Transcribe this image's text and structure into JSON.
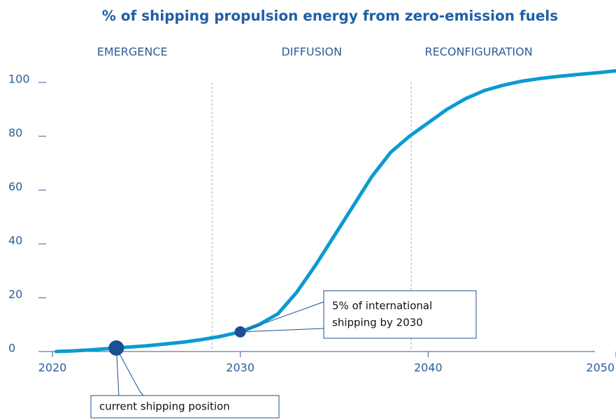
{
  "chart_data": {
    "type": "line",
    "title": "% of shipping propulsion energy from zero-emission fuels",
    "phases": [
      {
        "label": "EMERGENCE",
        "end": 2028.5
      },
      {
        "label": "DIFFUSION",
        "end": 2039.1
      },
      {
        "label": "RECONFIGURATION"
      }
    ],
    "series": [
      {
        "color": "#0a9bd0",
        "x": [
          2020.2,
          2021,
          2022,
          2023,
          2024,
          2025,
          2026,
          2027,
          2028,
          2029,
          2030,
          2031,
          2032,
          2033,
          2034,
          2035,
          2036,
          2037,
          2038,
          2039,
          2040,
          2041,
          2042,
          2043,
          2044,
          2045,
          2046,
          2047,
          2048,
          2049,
          2050
        ],
        "values": [
          0,
          0.2,
          0.6,
          1.1,
          1.6,
          2.1,
          2.8,
          3.5,
          4.5,
          5.7,
          7.3,
          10,
          14,
          22,
          32,
          43,
          54,
          65,
          74,
          80,
          85,
          90,
          94,
          97,
          99,
          100.5,
          101.5,
          102.3,
          103,
          103.6,
          104.3
        ]
      }
    ],
    "annotations": [
      {
        "lines": [
          "current shipping position"
        ],
        "x": 2023.4,
        "y": 1.3
      },
      {
        "lines": [
          "5% of international",
          "shipping by 2030"
        ],
        "x": 2030,
        "y": 7.3
      }
    ],
    "marker_color": "#1c4f93",
    "xlim": [
      2020,
      2050
    ],
    "xticks": [
      2020,
      2030,
      2040,
      2050
    ],
    "ylim": [
      0,
      105
    ],
    "yticks": [
      0,
      20,
      40,
      60,
      80,
      100
    ]
  }
}
